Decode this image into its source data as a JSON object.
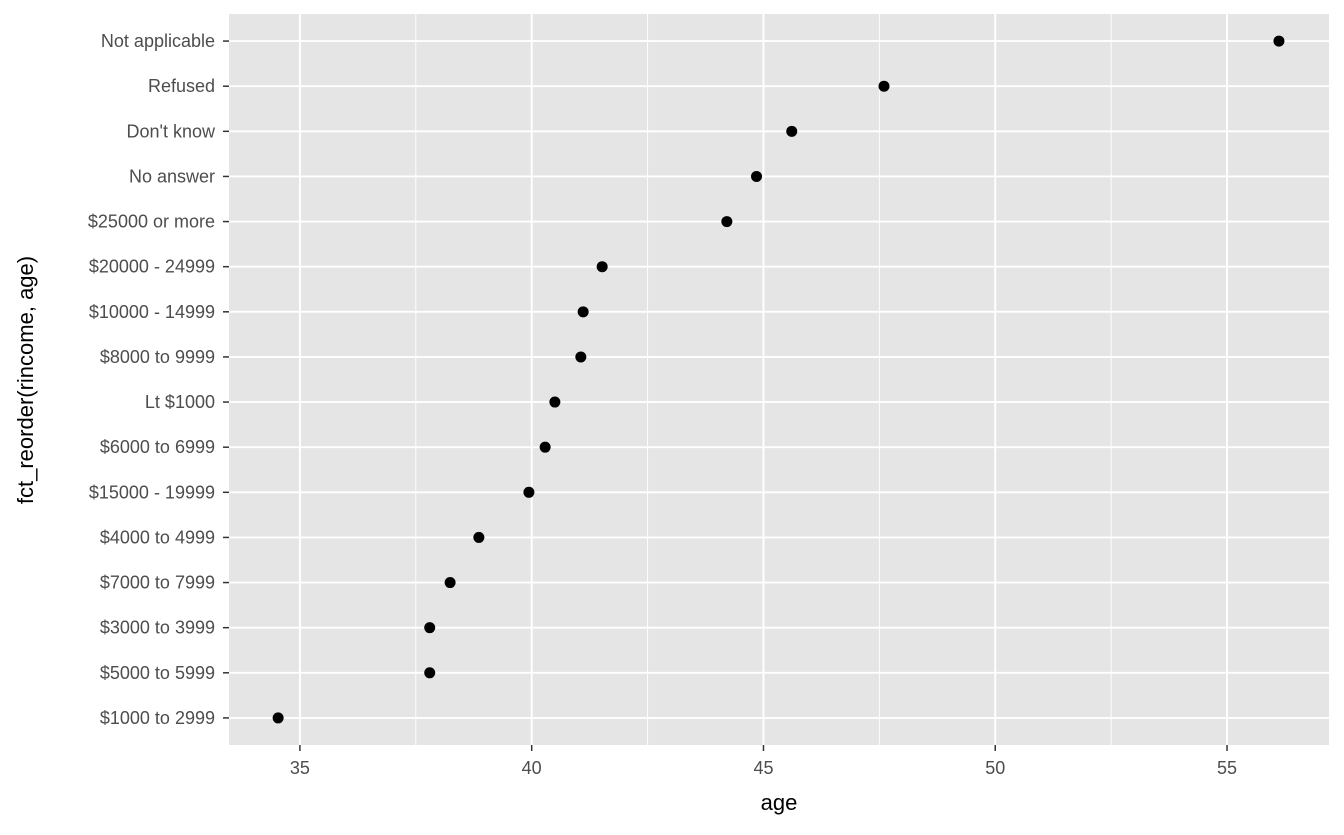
{
  "chart_data": {
    "type": "scatter",
    "title": "",
    "xlabel": "age",
    "ylabel": "fct_reorder(rincome, age)",
    "xlim": [
      33.47,
      57.2
    ],
    "x_ticks": [
      35,
      40,
      45,
      50,
      55
    ],
    "grid": true,
    "legend": "none",
    "colors": {
      "panel": "#E5E5E5",
      "grid": "#FFFFFF",
      "point": "#000000",
      "tick_text": "#4D4D4D"
    },
    "categories": [
      "$1000 to 2999",
      "$5000 to 5999",
      "$3000 to 3999",
      "$7000 to 7999",
      "$4000 to 4999",
      "$15000 - 19999",
      "$6000 to 6999",
      "Lt $1000",
      "$8000 to 9999",
      "$10000 - 14999",
      "$20000 - 24999",
      "$25000 or more",
      "No answer",
      "Don't know",
      "Refused",
      "Not applicable"
    ],
    "values": [
      34.53,
      37.8,
      37.8,
      38.24,
      38.86,
      39.94,
      40.29,
      40.5,
      41.06,
      41.11,
      41.52,
      44.21,
      44.85,
      45.61,
      47.6,
      56.12
    ]
  }
}
